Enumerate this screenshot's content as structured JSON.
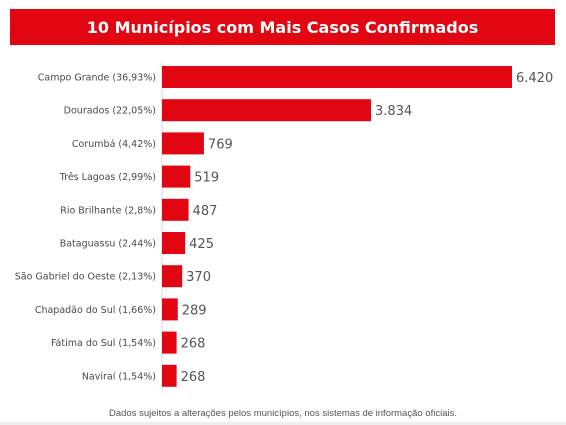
{
  "chart_data": {
    "type": "bar",
    "orientation": "horizontal",
    "title": "10 Municípios com Mais Casos Confirmados",
    "categories": [
      "Campo Grande (36,93%)",
      "Dourados (22,05%)",
      "Corumbá (4,42%)",
      "Três Lagoas (2,99%)",
      "Rio Brilhante (2,8%)",
      "Bataguassu (2,44%)",
      "São Gabriel do Oeste (2,13%)",
      "Chapadão do Sul (1,66%)",
      "Fátima do Sul (1,54%)",
      "Naviraí (1,54%)"
    ],
    "values": [
      6420,
      3834,
      769,
      519,
      487,
      425,
      370,
      289,
      268,
      268
    ],
    "value_labels": [
      "6.420",
      "3.834",
      "769",
      "519",
      "487",
      "425",
      "370",
      "289",
      "268",
      "268"
    ],
    "xlabel": "",
    "ylabel": "",
    "grid": false,
    "legend": "none",
    "bar_color": "#e20613",
    "title_bar_color": "#e20613"
  },
  "footnote": "Dados sujeitos a alterações pelos municípios, nos sistemas de informação oficiais."
}
